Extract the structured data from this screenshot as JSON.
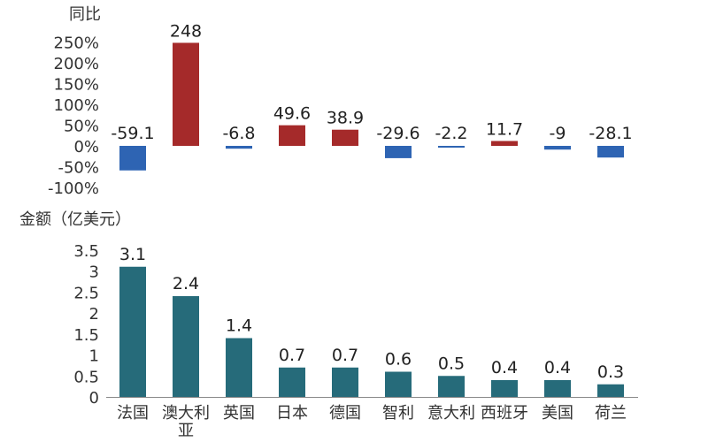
{
  "chart_data": [
    {
      "type": "bar",
      "ylabel": "同比",
      "categories": [
        "法国",
        "澳大利亚",
        "英国",
        "日本",
        "德国",
        "智利",
        "意大利",
        "西班牙",
        "美国",
        "荷兰"
      ],
      "values": [
        -59.1,
        248,
        -6.8,
        49.6,
        38.9,
        -29.6,
        -2.2,
        11.7,
        -9,
        -28.1
      ],
      "data_labels": [
        "-59.1",
        "248",
        "-6.8",
        "49.6",
        "38.9",
        "-29.6",
        "-2.2",
        "11.7",
        "-9",
        "-28.1"
      ],
      "y_ticks": [
        "250%",
        "200%",
        "150%",
        "100%",
        "50%",
        "0%",
        "-50%",
        "-100%"
      ],
      "y_tick_values": [
        250,
        200,
        150,
        100,
        50,
        0,
        -50,
        -100
      ],
      "ylim": [
        -100,
        250
      ],
      "colors": {
        "positive": "#A52A2A",
        "negative": "#2E64B3"
      },
      "grid": false
    },
    {
      "type": "bar",
      "ylabel": "金额（亿美元）",
      "categories": [
        "法国",
        "澳大利亚",
        "英国",
        "日本",
        "德国",
        "智利",
        "意大利",
        "西班牙",
        "美国",
        "荷兰"
      ],
      "category_labels": [
        [
          "法国"
        ],
        [
          "澳大利",
          "亚"
        ],
        [
          "英国"
        ],
        [
          "日本"
        ],
        [
          "德国"
        ],
        [
          "智利"
        ],
        [
          "意大利"
        ],
        [
          "西班牙"
        ],
        [
          "美国"
        ],
        [
          "荷兰"
        ]
      ],
      "values": [
        3.1,
        2.4,
        1.4,
        0.7,
        0.7,
        0.6,
        0.5,
        0.4,
        0.4,
        0.3
      ],
      "data_labels": [
        "3.1",
        "2.4",
        "1.4",
        "0.7",
        "0.7",
        "0.6",
        "0.5",
        "0.4",
        "0.4",
        "0.3"
      ],
      "y_ticks": [
        "3.5",
        "3",
        "2.5",
        "2",
        "1.5",
        "1",
        "0.5",
        "0"
      ],
      "y_tick_values": [
        3.5,
        3,
        2.5,
        2,
        1.5,
        1,
        0.5,
        0
      ],
      "ylim": [
        0,
        3.5
      ],
      "colors": {
        "bar": "#266B7A",
        "axis": "#888888"
      },
      "grid": false
    }
  ]
}
